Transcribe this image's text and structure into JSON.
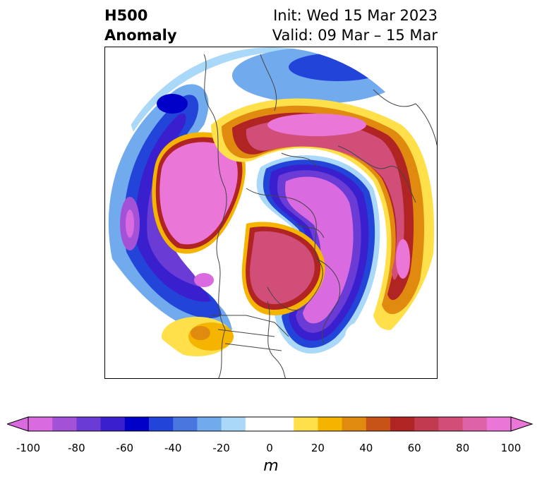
{
  "title": {
    "left_line1": "H500",
    "left_line2": "Anomaly",
    "right_line1": "Init: Wed 15 Mar 2023",
    "right_line2": "Valid: 09 Mar – 15 Mar"
  },
  "colorbar": {
    "unit": "m",
    "ticks": [
      "-100",
      "-80",
      "-60",
      "-40",
      "-20",
      "0",
      "20",
      "40",
      "60",
      "80",
      "100"
    ],
    "colors": [
      "#d96ae0",
      "#a352d8",
      "#6b3bd6",
      "#3a1fcf",
      "#0000c8",
      "#2244d8",
      "#4a76e0",
      "#72aaee",
      "#aad8f8",
      "#ffffff",
      "#ffffff",
      "#ffe04a",
      "#f4b400",
      "#e08a10",
      "#c85318",
      "#b02424",
      "#c23a50",
      "#d04e78",
      "#de62a8",
      "#ea76d8"
    ],
    "extend_low": "#d96ae0",
    "extend_high": "#ea76d8"
  },
  "map": {
    "projection": "north-polar-stereographic",
    "field": "500 hPa geopotential height anomaly",
    "features": [
      "coastlines",
      "country borders",
      "US state borders",
      "Canadian provinces"
    ]
  }
}
